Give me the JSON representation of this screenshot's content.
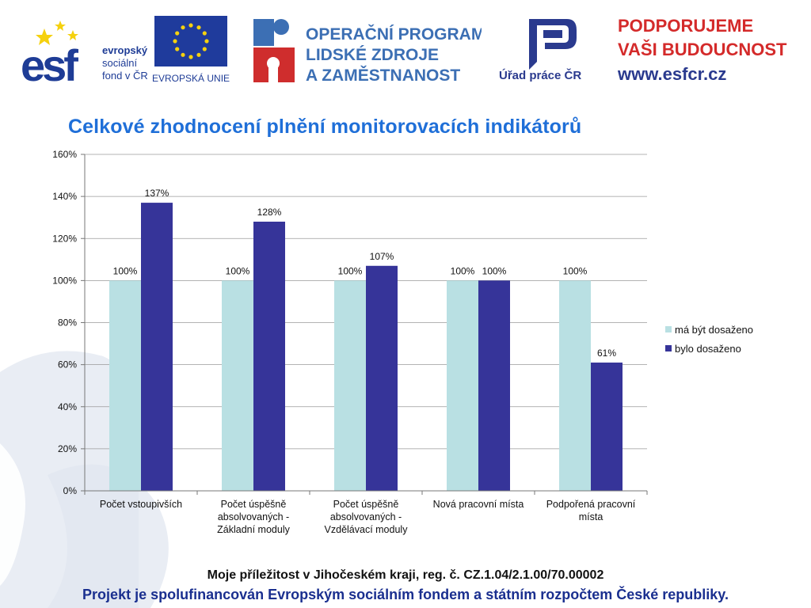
{
  "logos": {
    "esf": {
      "mark": "esf",
      "lines": [
        "evropský",
        "sociální",
        "fond v ČR"
      ]
    },
    "eu": {
      "caption": "EVROPSKÁ UNIE",
      "icon": "eu-flag-icon"
    },
    "oplzz": {
      "lines": [
        "OPERAČNÍ PROGRAM",
        "LIDSKÉ ZDROJE",
        "A ZAMĚSTNANOST"
      ],
      "icon": "puzzle-figure-icon"
    },
    "urad": {
      "caption": "Úřad práce ČR",
      "icon": "up-logo-icon"
    },
    "podporujeme": {
      "lines": [
        "PODPORUJEME",
        "VAŠI BUDOUCNOST"
      ],
      "url": "www.esfcr.cz"
    }
  },
  "colors": {
    "title": "#1f6fd8",
    "series_target": "#b9e0e3",
    "series_achieved": "#363499",
    "footer_primary": "#111111",
    "footer_secondary": "#1a2f8f"
  },
  "chart_data": {
    "type": "bar",
    "title": "Celkové zhodnocení plnění monitorovacích indikátorů",
    "categories": [
      [
        "Počet vstoupivších"
      ],
      [
        "Počet úspěšně",
        "absolvovaných -",
        "Základní moduly"
      ],
      [
        "Počet úspěšně",
        "absolvovaných -",
        "Vzdělávací moduly"
      ],
      [
        "Nová pracovní místa"
      ],
      [
        "Podpořená pracovní",
        "místa"
      ]
    ],
    "series": [
      {
        "name": "má být dosaženo",
        "values": [
          100,
          100,
          100,
          100,
          100
        ],
        "labels": [
          "100%",
          "100%",
          "100%",
          "100%",
          "100%"
        ]
      },
      {
        "name": "bylo dosaženo",
        "values": [
          137,
          128,
          107,
          100,
          61
        ],
        "labels": [
          "137%",
          "128%",
          "107%",
          "100%",
          "61%"
        ]
      }
    ],
    "ylim": [
      0,
      160
    ],
    "yticks": [
      "0%",
      "20%",
      "40%",
      "60%",
      "80%",
      "100%",
      "120%",
      "140%",
      "160%"
    ],
    "grid": true,
    "legend": "right"
  },
  "footer": {
    "line1": "Moje příležitost v Jihočeském kraji, reg. č. CZ.1.04/2.1.00/70.00002",
    "line2": "Projekt je spolufinancován Evropským sociálním fondem a státním rozpočtem České republiky."
  }
}
